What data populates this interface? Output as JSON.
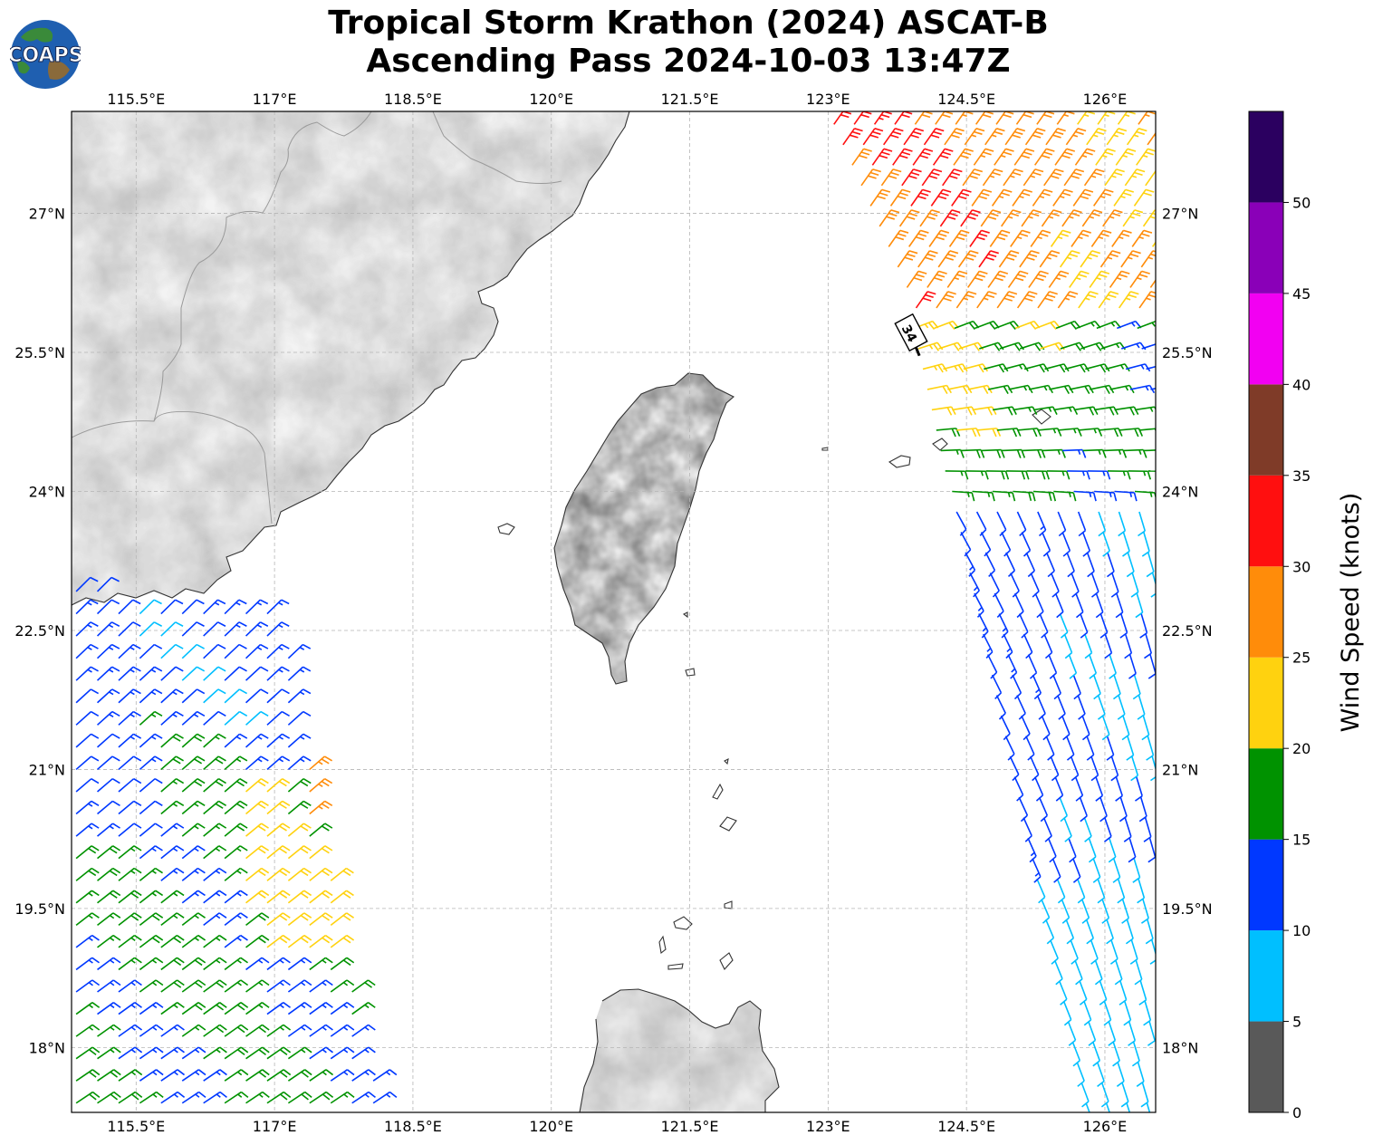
{
  "header": {
    "title_line1": "Tropical Storm Krathon (2024) ASCAT-B",
    "title_line2": "Ascending Pass 2024-10-03 13:47Z",
    "logo_text": "COAPS"
  },
  "map": {
    "lon_ticks": [
      "115.5°E",
      "117°E",
      "118.5°E",
      "120°E",
      "121.5°E",
      "123°E",
      "124.5°E",
      "126°E"
    ],
    "lat_ticks": [
      "27°N",
      "25.5°N",
      "24°N",
      "22.5°N",
      "21°N",
      "19.5°N",
      "18°N"
    ],
    "storm_marker_label": "34"
  },
  "chart_data": {
    "type": "wind_barbs",
    "x_range_deg_east": [
      114.8,
      126.55
    ],
    "y_range_deg_north": [
      17.3,
      28.1
    ],
    "colorbar": {
      "label": "Wind Speed (knots)",
      "tick_labels": [
        "0",
        "5",
        "10",
        "15",
        "20",
        "25",
        "30",
        "35",
        "40",
        "45",
        "50"
      ],
      "bins": [
        {
          "range": [
            0,
            5
          ],
          "color": "#595959"
        },
        {
          "range": [
            5,
            10
          ],
          "color": "#00bfff"
        },
        {
          "range": [
            10,
            15
          ],
          "color": "#0038ff"
        },
        {
          "range": [
            15,
            20
          ],
          "color": "#009200"
        },
        {
          "range": [
            20,
            25
          ],
          "color": "#ffd20f"
        },
        {
          "range": [
            25,
            30
          ],
          "color": "#ff8c0a"
        },
        {
          "range": [
            30,
            35
          ],
          "color": "#ff0f0f"
        },
        {
          "range": [
            35,
            40
          ],
          "color": "#7f3b28"
        },
        {
          "range": [
            40,
            45
          ],
          "color": "#f200f2"
        },
        {
          "range": [
            45,
            50
          ],
          "color": "#8a00b8"
        },
        {
          "range": [
            50,
            55
          ],
          "color": "#2b0060"
        }
      ]
    },
    "storm_center": {
      "lon": 124.0,
      "lat": 25.7
    },
    "swaths": [
      {
        "region": "west",
        "lon_range": [
          114.8,
          118.0
        ],
        "lat_range": [
          17.3,
          23.0
        ],
        "typical_speed_kt": [
          10,
          25
        ]
      },
      {
        "region": "east",
        "lon_range": [
          123.0,
          126.55
        ],
        "lat_range": [
          17.3,
          28.1
        ],
        "typical_speed_kt": [
          5,
          35
        ]
      }
    ]
  }
}
